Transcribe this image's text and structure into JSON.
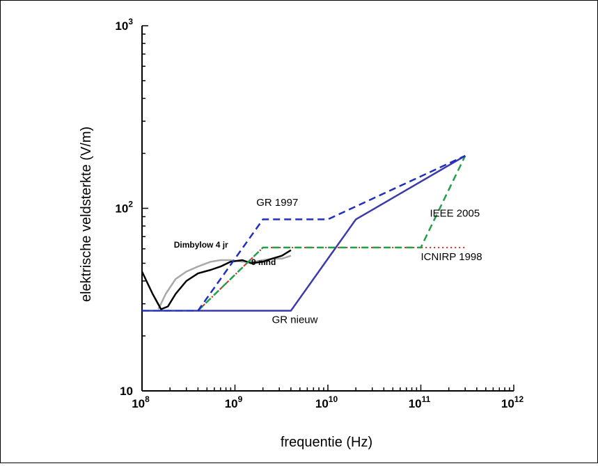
{
  "chart_data": {
    "type": "line",
    "x_scale": "log",
    "y_scale": "log",
    "xlabel": "frequentie (Hz)",
    "ylabel": "elektrische veldsterkte (V/m)",
    "xlim": [
      100000000,
      1000000000000
    ],
    "ylim": [
      10,
      1000
    ],
    "x_ticks": [
      {
        "value": 100000000,
        "base": "10",
        "exp": "8"
      },
      {
        "value": 1000000000,
        "base": "10",
        "exp": "9"
      },
      {
        "value": 10000000000,
        "base": "10",
        "exp": "10"
      },
      {
        "value": 100000000000,
        "base": "10",
        "exp": "11"
      },
      {
        "value": 1000000000000,
        "base": "10",
        "exp": "12"
      }
    ],
    "y_ticks": [
      {
        "value": 10,
        "base": "10",
        "exp": ""
      },
      {
        "value": 100,
        "base": "10",
        "exp": "2"
      },
      {
        "value": 1000,
        "base": "10",
        "exp": "3"
      }
    ],
    "grid": false,
    "series": [
      {
        "name": "GR 1997",
        "color": "#1f2fbf",
        "style": "dashed",
        "x": [
          100000000,
          400000000,
          2000000000,
          10000000000,
          300000000000
        ],
        "y": [
          27.5,
          27.5,
          87,
          87,
          194
        ]
      },
      {
        "name": "GR nieuw",
        "color": "#3a3aa8",
        "style": "solid",
        "x": [
          100000000,
          4000000000,
          20000000000,
          300000000000
        ],
        "y": [
          27.5,
          27.5,
          87,
          194
        ]
      },
      {
        "name": "IEEE 2005",
        "color": "#22a045",
        "style": "dashed",
        "x": [
          100000000,
          400000000,
          2000000000,
          100000000000,
          300000000000
        ],
        "y": [
          27.5,
          27.5,
          61,
          61,
          194
        ]
      },
      {
        "name": "ICNIRP 1998",
        "color": "#e02020",
        "style": "dotted",
        "x": [
          100000000,
          400000000,
          2000000000,
          300000000000
        ],
        "y": [
          27.5,
          27.5,
          61,
          61
        ]
      },
      {
        "name": "Dimbylow 4 jr",
        "color": "#a8a8a8",
        "style": "solid",
        "x": [
          150000000,
          180000000,
          230000000,
          300000000,
          400000000,
          550000000,
          700000000,
          900000000,
          1200000000,
          1600000000,
          2000000000,
          2600000000,
          3200000000,
          4000000000
        ],
        "y": [
          28,
          34,
          41,
          45,
          48,
          51,
          52,
          52,
          51,
          51,
          52,
          53,
          53,
          55
        ]
      },
      {
        "name": "9 mnd",
        "color": "#000000",
        "style": "solid",
        "x": [
          100000000,
          130000000,
          160000000,
          190000000,
          230000000,
          300000000,
          400000000,
          550000000,
          700000000,
          900000000,
          1200000000,
          1500000000,
          2000000000,
          2500000000,
          3200000000,
          4000000000
        ],
        "y": [
          45,
          34,
          28,
          29,
          34,
          40,
          44,
          46,
          48,
          51,
          52,
          50,
          51,
          53,
          55,
          59
        ]
      }
    ],
    "annotations": [
      {
        "text": "GR 1997",
        "x": 1700000000,
        "y": 103
      },
      {
        "text": "IEEE 2005",
        "x": 125000000000,
        "y": 90
      },
      {
        "text": "Dimbylow 4 jr",
        "x": 220000000,
        "y": 61
      },
      {
        "text": "9 mnd",
        "x": 1500000000,
        "y": 49
      },
      {
        "text": "ICNIRP 1998",
        "x": 100000000000,
        "y": 52
      },
      {
        "text": "GR nieuw",
        "x": 2500000000,
        "y": 23.5
      }
    ]
  }
}
